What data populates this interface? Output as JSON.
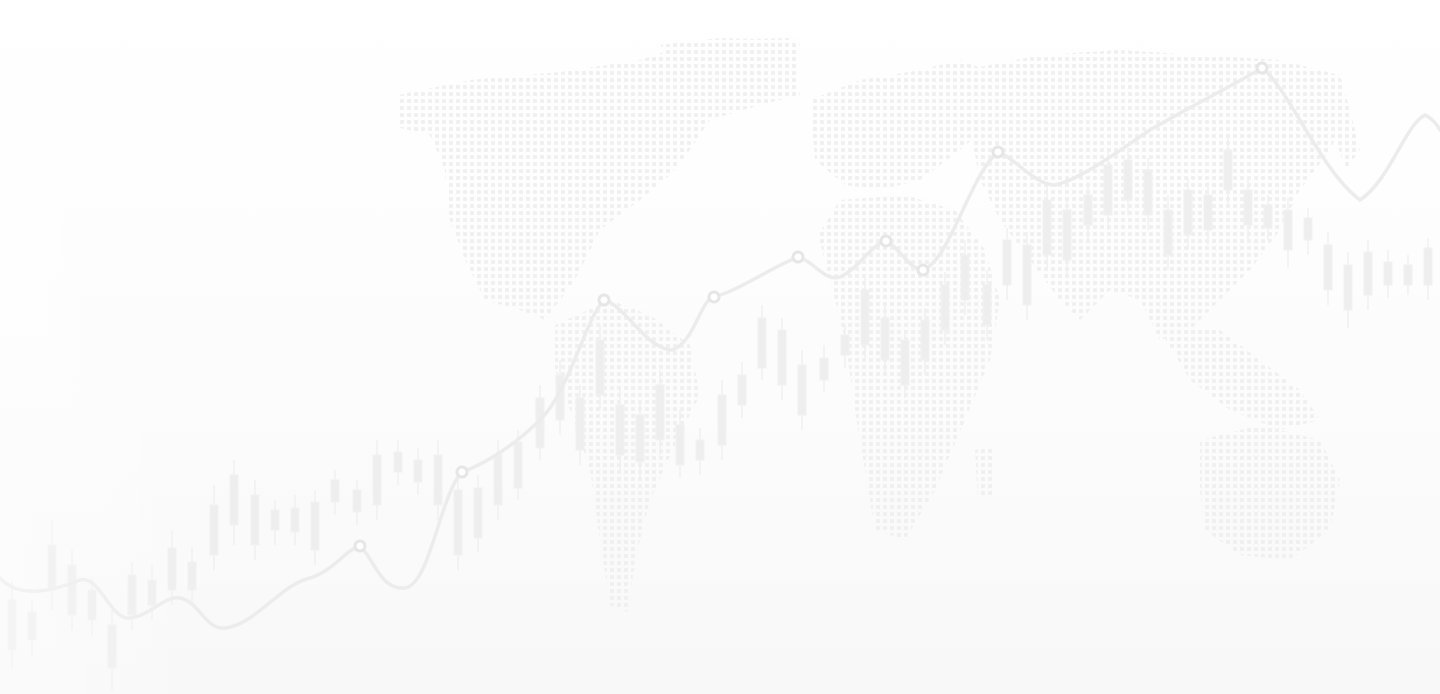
{
  "background": {
    "colors": {
      "canvas": "#ffffff",
      "map_dot": "#f1f1f1",
      "trend_line": "#ededed",
      "trend_point": "#e6e6e6",
      "candle": "#eeeeee"
    },
    "elements": [
      "world-map-dot-pattern",
      "price-trend-line",
      "candlesticks"
    ]
  }
}
